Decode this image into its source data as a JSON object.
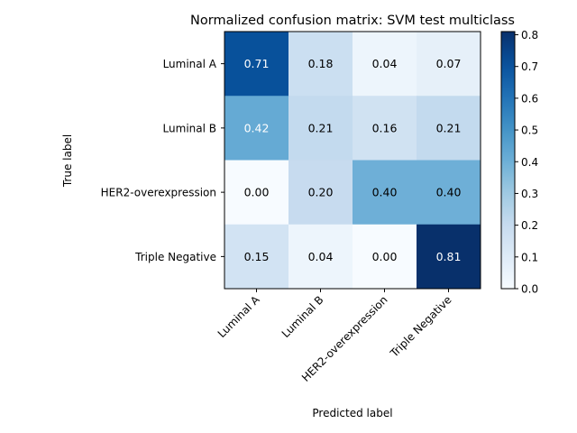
{
  "chart_data": {
    "type": "heatmap",
    "title": "Normalized confusion matrix: SVM test multiclass",
    "xlabel": "Predicted label",
    "ylabel": "True label",
    "x_categories": [
      "Luminal A",
      "Luminal B",
      "HER2-overexpression",
      "Triple Negative"
    ],
    "y_categories": [
      "Luminal A",
      "Luminal B",
      "HER2-overexpression",
      "Triple Negative"
    ],
    "values": [
      [
        0.71,
        0.18,
        0.04,
        0.07
      ],
      [
        0.42,
        0.21,
        0.16,
        0.21
      ],
      [
        0.0,
        0.2,
        0.4,
        0.4
      ],
      [
        0.15,
        0.04,
        0.0,
        0.81
      ]
    ],
    "cell_labels": [
      [
        "0.71",
        "0.18",
        "0.04",
        "0.07"
      ],
      [
        "0.42",
        "0.21",
        "0.16",
        "0.21"
      ],
      [
        "0.00",
        "0.20",
        "0.40",
        "0.40"
      ],
      [
        "0.15",
        "0.04",
        "0.00",
        "0.81"
      ]
    ],
    "colormap": "Blues",
    "colorbar": {
      "range": [
        0.0,
        0.81
      ],
      "ticks": [
        0.0,
        0.1,
        0.2,
        0.3,
        0.4,
        0.5,
        0.6,
        0.7,
        0.8
      ],
      "tick_labels": [
        "0.0",
        "0.1",
        "0.2",
        "0.3",
        "0.4",
        "0.5",
        "0.6",
        "0.7",
        "0.8"
      ]
    },
    "text_threshold": 0.405,
    "grid": false,
    "colors": {
      "text_light": "#ffffff",
      "text_dark": "#000000",
      "axis": "#000000"
    }
  }
}
